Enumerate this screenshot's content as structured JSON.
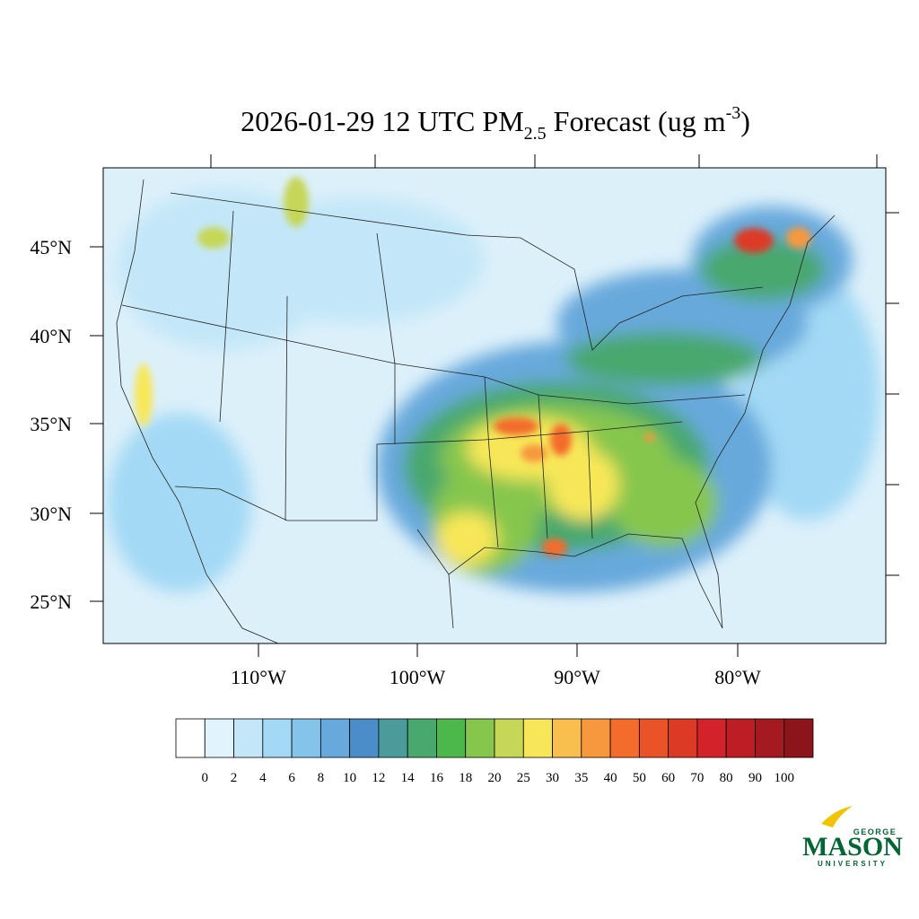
{
  "title": {
    "main": "2026-01-29 12 UTC PM",
    "sub": "2.5",
    "middle": " Forecast (ug m",
    "sup": "-3",
    "end": ")"
  },
  "map": {
    "lat_labels": [
      "45°N",
      "40°N",
      "35°N",
      "30°N",
      "25°N"
    ],
    "lon_labels": [
      "110°W",
      "100°W",
      "90°W",
      "80°W"
    ]
  },
  "colorbar": {
    "colors": [
      "#ffffff",
      "#e1f3fc",
      "#c3e7f8",
      "#a3d9f5",
      "#84c4ea",
      "#67a9dc",
      "#4a8dc8",
      "#4b9b9b",
      "#48a86e",
      "#4cb84c",
      "#86c64d",
      "#c6d657",
      "#f7e758",
      "#f8bf4e",
      "#f7983e",
      "#f36c2c",
      "#ea5228",
      "#dd3a26",
      "#d32229",
      "#bd1d25",
      "#a51a20",
      "#8c141b"
    ],
    "levels": [
      0,
      2,
      4,
      6,
      8,
      10,
      12,
      14,
      16,
      18,
      20,
      25,
      30,
      35,
      40,
      50,
      60,
      70,
      80,
      90,
      100
    ]
  },
  "logo": {
    "top": "GEORGE",
    "main": "MASON",
    "bottom": "UNIVERSITY"
  }
}
